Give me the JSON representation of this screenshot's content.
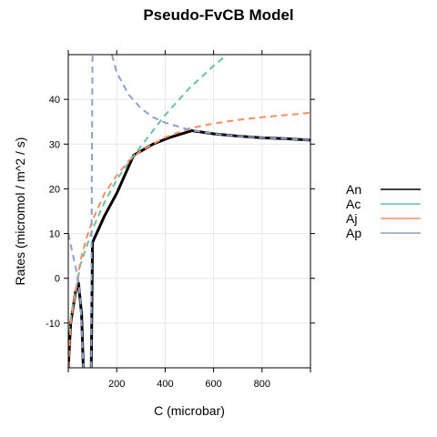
{
  "chart_data": {
    "type": "line",
    "title": "Pseudo-FvCB Model",
    "xlabel": "C (microbar)",
    "ylabel": "Rates (micromol / m^2 / s)",
    "xlim": [
      0,
      1000
    ],
    "ylim": [
      -20,
      50
    ],
    "xticks": [
      200,
      400,
      600,
      800
    ],
    "yticks": [
      -10,
      0,
      10,
      20,
      30,
      40
    ],
    "grid": true,
    "legend_position": "right",
    "series": [
      {
        "name": "An",
        "color": "#000000",
        "style": "solid",
        "segments": [
          [
            [
              0,
              -20
            ],
            [
              10,
              -10
            ],
            [
              30,
              -3
            ],
            [
              42,
              -1
            ],
            [
              55,
              -8
            ],
            [
              62,
              -20
            ]
          ],
          [
            [
              95,
              -20
            ],
            [
              100,
              8
            ],
            [
              150,
              14
            ],
            [
              200,
              19
            ],
            [
              270,
              27.5
            ],
            [
              350,
              30
            ],
            [
              420,
              31.5
            ],
            [
              510,
              33
            ],
            [
              600,
              32.3
            ],
            [
              700,
              31.8
            ],
            [
              800,
              31.4
            ],
            [
              900,
              31.2
            ],
            [
              1000,
              30.9
            ]
          ]
        ]
      },
      {
        "name": "Ac",
        "color": "#66c2a5",
        "style": "dashed",
        "segments": [
          [
            [
              0,
              -12
            ],
            [
              50,
              3
            ],
            [
              100,
              11
            ],
            [
              150,
              17
            ],
            [
              200,
              22
            ],
            [
              250,
              26
            ],
            [
              300,
              29.5
            ],
            [
              350,
              33
            ],
            [
              400,
              36.5
            ],
            [
              450,
              39.5
            ],
            [
              500,
              42.5
            ],
            [
              550,
              45
            ],
            [
              600,
              47.5
            ],
            [
              645,
              49.5
            ]
          ]
        ]
      },
      {
        "name": "Aj",
        "color": "#fc8d62",
        "style": "dashed",
        "segments": [
          [
            [
              0,
              -20
            ],
            [
              10,
              -10
            ],
            [
              30,
              -3
            ],
            [
              50,
              4
            ],
            [
              75,
              9
            ],
            [
              100,
              13
            ],
            [
              150,
              19
            ],
            [
              200,
              23
            ],
            [
              250,
              26.3
            ],
            [
              300,
              28.5
            ],
            [
              400,
              31.5
            ],
            [
              500,
              33.5
            ],
            [
              600,
              34.6
            ],
            [
              700,
              35.4
            ],
            [
              800,
              36
            ],
            [
              900,
              36.5
            ],
            [
              1000,
              37
            ]
          ]
        ]
      },
      {
        "name": "Ap",
        "color": "#8da0cb",
        "style": "dashed",
        "segments": [
          [
            [
              0,
              10
            ],
            [
              20,
              5
            ],
            [
              40,
              0
            ],
            [
              50,
              -5
            ],
            [
              55,
              -10
            ],
            [
              62,
              -20
            ]
          ],
          [
            [
              95,
              -20
            ],
            [
              97,
              20
            ],
            [
              100,
              50
            ]
          ],
          [
            [
              180,
              50
            ],
            [
              200,
              46
            ],
            [
              250,
              41
            ],
            [
              300,
              38
            ],
            [
              350,
              36
            ],
            [
              400,
              34.8
            ],
            [
              450,
              34
            ],
            [
              500,
              33.2
            ],
            [
              600,
              32.3
            ],
            [
              700,
              31.8
            ],
            [
              800,
              31.4
            ],
            [
              900,
              31.2
            ],
            [
              1000,
              30.9
            ]
          ]
        ]
      }
    ]
  }
}
